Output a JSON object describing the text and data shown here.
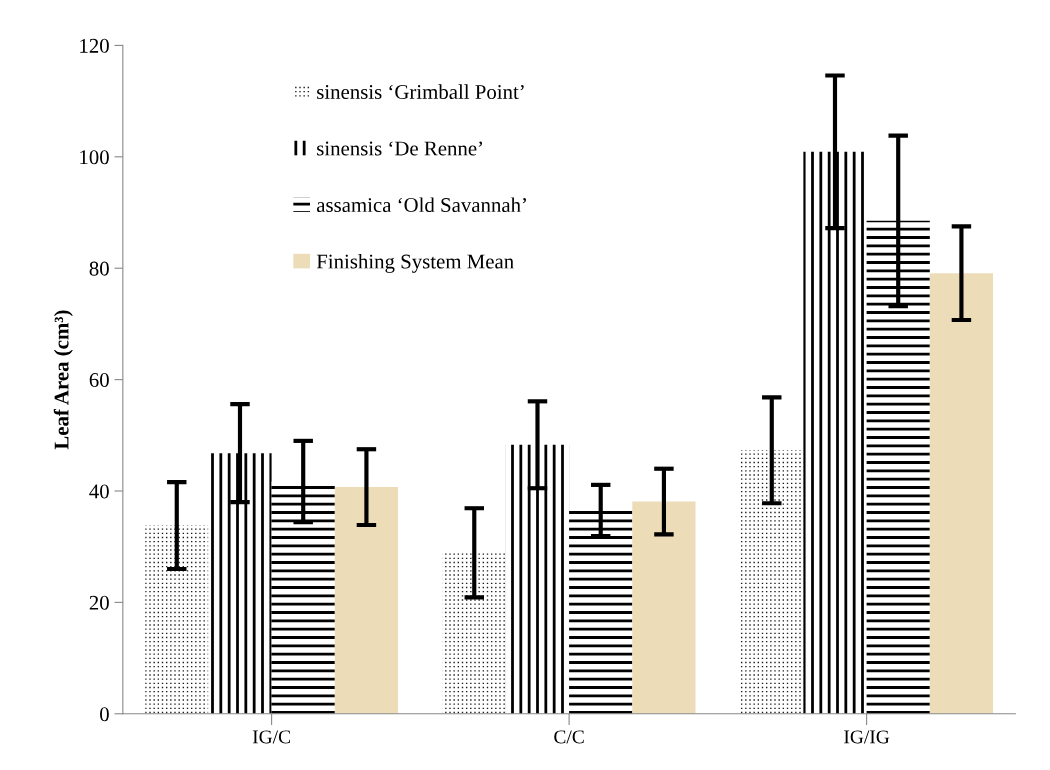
{
  "chart_data": {
    "type": "bar",
    "ylabel": "Leaf Area (cm³)",
    "categories": [
      "IG/C",
      "C/C",
      "IG/IG"
    ],
    "series": [
      {
        "name": "sinensis ‘Grimball Point’",
        "color": "#1a1a1a",
        "values": [
          33.8,
          28.9,
          47.3
        ],
        "errors": [
          7.8,
          8.0,
          9.5
        ]
      },
      {
        "name": "sinensis ‘De Renne’",
        "color": "#ffffff",
        "values": [
          46.8,
          48.3,
          100.9
        ],
        "errors": [
          8.8,
          7.8,
          13.7
        ]
      },
      {
        "name": "assamica ‘Old Savannah’",
        "color": "#ffffff",
        "values": [
          41.7,
          36.5,
          88.5
        ],
        "errors": [
          7.3,
          4.6,
          15.3
        ]
      },
      {
        "name": "Finishing System Mean",
        "color": "#ecdcb8",
        "values": [
          40.7,
          38.1,
          79.1
        ],
        "errors": [
          6.8,
          5.9,
          8.4
        ]
      }
    ],
    "ylim": [
      0,
      120
    ],
    "yticks": [
      0,
      20,
      40,
      60,
      80,
      100,
      120
    ],
    "grid": false,
    "legend": "top left"
  }
}
